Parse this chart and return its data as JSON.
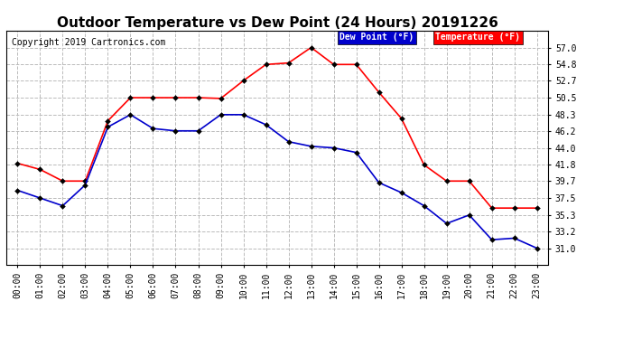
{
  "title": "Outdoor Temperature vs Dew Point (24 Hours) 20191226",
  "copyright": "Copyright 2019 Cartronics.com",
  "background_color": "#ffffff",
  "grid_color": "#bbbbbb",
  "hours": [
    "00:00",
    "01:00",
    "02:00",
    "03:00",
    "04:00",
    "05:00",
    "06:00",
    "07:00",
    "08:00",
    "09:00",
    "10:00",
    "11:00",
    "12:00",
    "13:00",
    "14:00",
    "15:00",
    "16:00",
    "17:00",
    "18:00",
    "19:00",
    "20:00",
    "21:00",
    "22:00",
    "23:00"
  ],
  "temperature": [
    42.0,
    41.2,
    39.7,
    39.7,
    47.5,
    50.5,
    50.5,
    50.5,
    50.5,
    50.4,
    52.7,
    54.8,
    55.0,
    57.0,
    54.8,
    54.8,
    51.2,
    47.8,
    41.8,
    39.7,
    39.7,
    36.2,
    36.2,
    36.2
  ],
  "dew_point": [
    38.5,
    37.5,
    36.5,
    39.2,
    46.7,
    48.3,
    46.5,
    46.2,
    46.2,
    48.3,
    48.3,
    47.0,
    44.8,
    44.2,
    44.0,
    43.4,
    39.5,
    38.2,
    36.5,
    34.2,
    35.3,
    32.1,
    32.3,
    31.0
  ],
  "ylim_min": 28.9,
  "ylim_max": 59.2,
  "yticks": [
    31.0,
    33.2,
    35.3,
    37.5,
    39.7,
    41.8,
    44.0,
    46.2,
    48.3,
    50.5,
    52.7,
    54.8,
    57.0
  ],
  "temp_color": "#ff0000",
  "dew_color": "#0000cc",
  "marker_size": 3,
  "title_fontsize": 11,
  "tick_fontsize": 7,
  "copyright_fontsize": 7,
  "legend_dew_bg": "#0000cc",
  "legend_temp_bg": "#ff0000"
}
